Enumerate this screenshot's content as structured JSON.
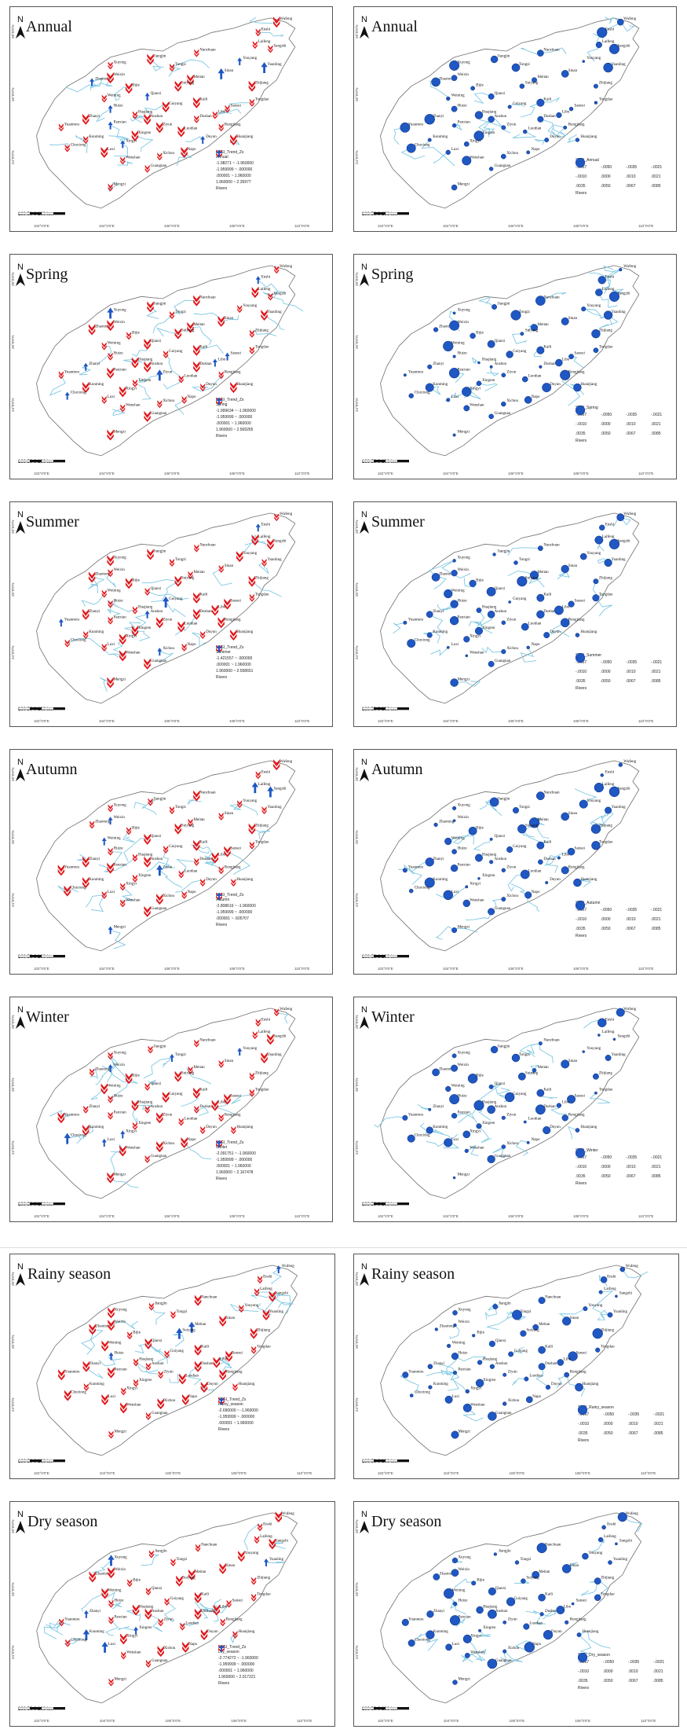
{
  "figure": {
    "panels": [
      {
        "row": 0,
        "kind": "trend",
        "title": "Annual",
        "legend_title": "SPEI_Trend_Zs",
        "legend_sub": "Annual",
        "legend_items": [
          "-1.98271 ~ -1.960000",
          "-1.959999 ~ .000000",
          ".000001 ~ 1.960000",
          "1.960000 ~ 2.35977"
        ],
        "rivers": "Rivers"
      },
      {
        "row": 0,
        "kind": "slope",
        "title": "Annual",
        "legend_title": "SPEI_Annual",
        "rivers": "Rivers"
      },
      {
        "row": 1,
        "kind": "trend",
        "title": "Spring",
        "legend_title": "SPEI_Trend_Zs",
        "legend_sub": "Spring",
        "legend_items": [
          "-1.999634 ~ -1.960000",
          "-1.959999 ~ .000000",
          ".000001 ~ 1.960000",
          "1.960000 ~ 2.569265"
        ],
        "rivers": "Rivers"
      },
      {
        "row": 1,
        "kind": "slope",
        "title": "Spring",
        "legend_title": "SPEI_Spring",
        "rivers": "Rivers"
      },
      {
        "row": 2,
        "kind": "trend",
        "title": "Summer",
        "legend_title": "SPEI_Trend_Zs",
        "legend_sub": "Summer",
        "legend_items": [
          "-1.421557 ~ .000000",
          ".000001 ~ 1.960000",
          "1.960000 ~ 2.558651"
        ],
        "rivers": "Rivers"
      },
      {
        "row": 2,
        "kind": "slope",
        "title": "Summer",
        "legend_title": "SPEI_Summer",
        "rivers": "Rivers"
      },
      {
        "row": 3,
        "kind": "trend",
        "title": "Autumn",
        "legend_title": "SPEI_Trend_Zs",
        "legend_sub": "Autumn",
        "legend_items": [
          "-2.808616 ~ -1.960000",
          "-1.959999 ~ .000000",
          ".000001 ~ .605707"
        ],
        "rivers": "Rivers"
      },
      {
        "row": 3,
        "kind": "slope",
        "title": "Autumn",
        "legend_title": "SPEI_Autumn",
        "rivers": "Rivers"
      },
      {
        "row": 4,
        "kind": "trend",
        "title": "Winter",
        "legend_title": "SPEI_Trend_Zs",
        "legend_sub": "Winter",
        "legend_items": [
          "-2.091751 ~ -1.960000",
          "-1.959999 ~ .000000",
          ".000001 ~ 1.960000",
          "1.960000 ~ 2.167478"
        ],
        "rivers": "Rivers"
      },
      {
        "row": 4,
        "kind": "slope",
        "title": "Winter",
        "legend_title": "SPEI_Winter",
        "rivers": "Rivers"
      },
      {
        "row": 5,
        "kind": "trend",
        "title": "Rainy season",
        "legend_title": "SPEI_Trend_Zs",
        "legend_sub": "Rainy_season",
        "legend_items": [
          "-2.690000 ~ -1.960000",
          "-1.959999 ~ .000000",
          ".000001 ~ 1.960000"
        ],
        "rivers": "Rivers"
      },
      {
        "row": 5,
        "kind": "slope",
        "title": "Rainy season",
        "legend_title": "SPEI_Rainy_season",
        "rivers": "Rivers"
      },
      {
        "row": 6,
        "kind": "trend",
        "title": "Dry season",
        "legend_title": "SPEI_Trend_Zs",
        "legend_sub": "Dry_season",
        "legend_items": [
          "-2.774272 ~ -1.960000",
          "-1.959999 ~ .000000",
          ".000001 ~ 1.960000",
          "1.960000 ~ 2.017221"
        ],
        "rivers": "Rivers"
      },
      {
        "row": 6,
        "kind": "slope",
        "title": "Dry season",
        "legend_title": "SPEI_Dry_season",
        "rivers": "Rivers"
      }
    ],
    "north_label": "N",
    "scale_labels": [
      "100",
      "50",
      "0",
      "100",
      "km"
    ],
    "lon_ticks": [
      "102°0'0\"E",
      "104°0'0\"E",
      "106°0'0\"E",
      "108°0'0\"E",
      "110°0'0\"E"
    ],
    "lat_ticks": [
      "28°0'0\"N",
      "26°0'0\"N",
      "24°0'0\"N"
    ],
    "stations": [
      "Wufeng",
      "Enshi",
      "Laifeng",
      "Sangzhi",
      "Youyang",
      "Yuanling",
      "Nanchuan",
      "Xuyong",
      "Tongzi",
      "Jiangjin",
      "Bijie",
      "Meitan",
      "Sinan",
      "Zhijiang",
      "Weining",
      "Zhanyi",
      "Qianxi",
      "Kaili",
      "Guiyang",
      "Sansui",
      "Panxian",
      "Anshun",
      "Xingren",
      "Luodian",
      "Dushan",
      "Rongjiang",
      "Tongdao",
      "Huize",
      "Kunming",
      "Luxi",
      "Wenshan",
      "Mengzi",
      "Guangnan",
      "Napo",
      "Xichou",
      "Ziyun",
      "Huajiang",
      "Xingyi",
      "Chuxiong",
      "Yuanmou",
      "Zhaotong",
      "Weixin",
      "Suiyang",
      "Duyun",
      "Libo",
      "Huanjiang"
    ],
    "slope_legend_values": [
      "-.0067",
      "-.0050",
      "-.0035",
      "-.0021",
      "-.0010",
      ".0000",
      ".0010",
      ".0021",
      ".0035",
      ".0050",
      ".0067",
      ".0085"
    ],
    "colors": {
      "river": "#7ec8e3",
      "boundary": "#6f6f6f",
      "down_arrow": "#e0181b",
      "up_arrow": "#1f57c3",
      "circle": "#1f57c3",
      "circle_stroke": "#0c2f7a",
      "frame": "#555555"
    }
  }
}
